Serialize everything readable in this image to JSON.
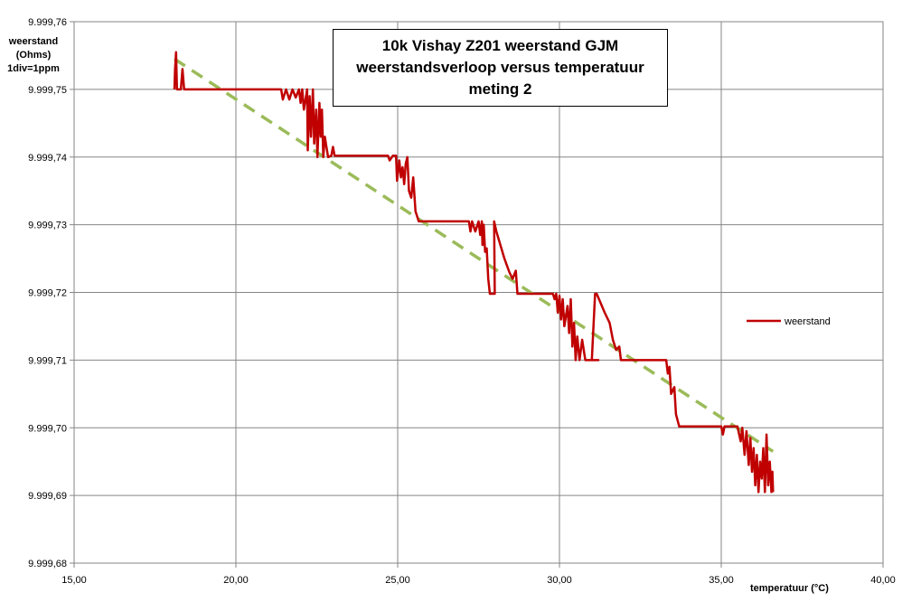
{
  "chart_data": {
    "type": "line",
    "title_lines": [
      "10k Vishay  Z201 weerstand GJM",
      "weerstandsverloop versus temperatuur",
      "meting 2"
    ],
    "ylabel_lines": [
      "weerstand",
      "(Ohms)",
      "1div=1ppm"
    ],
    "xlabel": "temperatuur (°C)",
    "xlim": [
      15,
      40
    ],
    "ylim": [
      9999.68,
      9999.76
    ],
    "x_ticks": [
      "15,00",
      "20,00",
      "25,00",
      "30,00",
      "35,00",
      "40,00"
    ],
    "y_ticks": [
      "9.999,68",
      "9.999,69",
      "9.999,70",
      "9.999,71",
      "9.999,72",
      "9.999,73",
      "9.999,74",
      "9.999,75",
      "9.999,76"
    ],
    "grid": true,
    "legend": {
      "position": "right",
      "entries": [
        "weerstand"
      ]
    },
    "series": [
      {
        "name": "weerstand",
        "color": "#c00000",
        "points": [
          [
            18.1,
            9999.75
          ],
          [
            18.12,
            9999.753
          ],
          [
            18.15,
            9999.7555
          ],
          [
            18.18,
            9999.75
          ],
          [
            18.3,
            9999.75
          ],
          [
            18.35,
            9999.753
          ],
          [
            18.4,
            9999.75
          ],
          [
            20.0,
            9999.75
          ],
          [
            21.4,
            9999.75
          ],
          [
            21.45,
            9999.7485
          ],
          [
            21.55,
            9999.75
          ],
          [
            21.65,
            9999.7485
          ],
          [
            21.75,
            9999.75
          ],
          [
            21.85,
            9999.7488
          ],
          [
            21.95,
            9999.75
          ],
          [
            22.0,
            9999.748
          ],
          [
            22.05,
            9999.75
          ],
          [
            22.1,
            9999.747
          ],
          [
            22.2,
            9999.75
          ],
          [
            22.22,
            9999.741
          ],
          [
            22.28,
            9999.749
          ],
          [
            22.32,
            9999.743
          ],
          [
            22.38,
            9999.75
          ],
          [
            22.42,
            9999.742
          ],
          [
            22.48,
            9999.747
          ],
          [
            22.52,
            9999.74
          ],
          [
            22.58,
            9999.748
          ],
          [
            22.62,
            9999.743
          ],
          [
            22.66,
            9999.747
          ],
          [
            22.7,
            9999.74
          ],
          [
            22.75,
            9999.743
          ],
          [
            22.85,
            9999.74
          ],
          [
            22.95,
            9999.7402
          ],
          [
            23.0,
            9999.7415
          ],
          [
            23.05,
            9999.7402
          ],
          [
            24.0,
            9999.7402
          ],
          [
            24.7,
            9999.7402
          ],
          [
            24.75,
            9999.7395
          ],
          [
            24.85,
            9999.7402
          ],
          [
            24.95,
            9999.7402
          ],
          [
            24.98,
            9999.7365
          ],
          [
            25.05,
            9999.7395
          ],
          [
            25.1,
            9999.737
          ],
          [
            25.15,
            9999.7385
          ],
          [
            25.2,
            9999.736
          ],
          [
            25.25,
            9999.739
          ],
          [
            25.3,
            9999.74
          ],
          [
            25.35,
            9999.735
          ],
          [
            25.42,
            9999.734
          ],
          [
            25.48,
            9999.737
          ],
          [
            25.55,
            9999.732
          ],
          [
            25.65,
            9999.7305
          ],
          [
            27.2,
            9999.7305
          ],
          [
            27.25,
            9999.729
          ],
          [
            27.3,
            9999.7305
          ],
          [
            27.4,
            9999.729
          ],
          [
            27.5,
            9999.7305
          ],
          [
            27.55,
            9999.7285
          ],
          [
            27.6,
            9999.7305
          ],
          [
            27.62,
            9999.727
          ],
          [
            27.66,
            9999.73
          ],
          [
            27.7,
            9999.726
          ],
          [
            27.75,
            9999.7265
          ],
          [
            27.8,
            9999.722
          ],
          [
            27.85,
            9999.7198
          ],
          [
            28.0,
            9999.7198
          ],
          [
            27.98,
            9999.7305
          ],
          [
            28.05,
            9999.729
          ],
          [
            28.3,
            9999.725
          ],
          [
            28.45,
            9999.723
          ],
          [
            28.55,
            9999.722
          ],
          [
            28.65,
            9999.7232
          ],
          [
            28.7,
            9999.7198
          ],
          [
            29.5,
            9999.7198
          ],
          [
            29.8,
            9999.7198
          ],
          [
            29.85,
            9999.719
          ],
          [
            29.9,
            9999.7198
          ],
          [
            29.95,
            9999.717
          ],
          [
            30.0,
            9999.7195
          ],
          [
            30.05,
            9999.716
          ],
          [
            30.1,
            9999.719
          ],
          [
            30.15,
            9999.715
          ],
          [
            30.25,
            9999.718
          ],
          [
            30.3,
            9999.714
          ],
          [
            30.35,
            9999.719
          ],
          [
            30.4,
            9999.712
          ],
          [
            30.45,
            9999.7155
          ],
          [
            30.5,
            9999.71
          ],
          [
            30.55,
            9999.7135
          ],
          [
            30.62,
            9999.71
          ],
          [
            30.7,
            9999.713
          ],
          [
            30.8,
            9999.71
          ],
          [
            31.2,
            9999.71
          ],
          [
            31.0,
            9999.71
          ],
          [
            31.1,
            9999.7198
          ],
          [
            31.15,
            9999.7198
          ],
          [
            31.4,
            9999.717
          ],
          [
            31.55,
            9999.7155
          ],
          [
            31.65,
            9999.713
          ],
          [
            31.75,
            9999.7115
          ],
          [
            31.85,
            9999.712
          ],
          [
            31.9,
            9999.71
          ],
          [
            33.0,
            9999.71
          ],
          [
            33.3,
            9999.71
          ],
          [
            33.35,
            9999.708
          ],
          [
            33.4,
            9999.709
          ],
          [
            33.45,
            9999.705
          ],
          [
            33.55,
            9999.706
          ],
          [
            33.6,
            9999.702
          ],
          [
            33.7,
            9999.7002
          ],
          [
            35.0,
            9999.7002
          ],
          [
            35.05,
            9999.699
          ],
          [
            35.1,
            9999.7002
          ],
          [
            35.5,
            9999.7002
          ],
          [
            35.6,
            9999.698
          ],
          [
            35.65,
            9999.7
          ],
          [
            35.72,
            9999.696
          ],
          [
            35.78,
            9999.6995
          ],
          [
            35.85,
            9999.6945
          ],
          [
            35.9,
            9999.6985
          ],
          [
            35.95,
            9999.6935
          ],
          [
            36.0,
            9999.697
          ],
          [
            36.05,
            9999.6915
          ],
          [
            36.1,
            9999.696
          ],
          [
            36.15,
            9999.6905
          ],
          [
            36.2,
            9999.695
          ],
          [
            36.25,
            9999.6925
          ],
          [
            36.3,
            9999.697
          ],
          [
            36.35,
            9999.6905
          ],
          [
            36.4,
            9999.699
          ],
          [
            36.45,
            9999.6915
          ],
          [
            36.5,
            9999.695
          ],
          [
            36.55,
            9999.6905
          ],
          [
            36.58,
            9999.6935
          ],
          [
            36.6,
            9999.6905
          ]
        ]
      }
    ],
    "trendline": {
      "color": "#9bbb59",
      "style": "dashed",
      "points": [
        [
          18.1,
          9999.7545
        ],
        [
          36.6,
          9999.6965
        ]
      ]
    }
  }
}
